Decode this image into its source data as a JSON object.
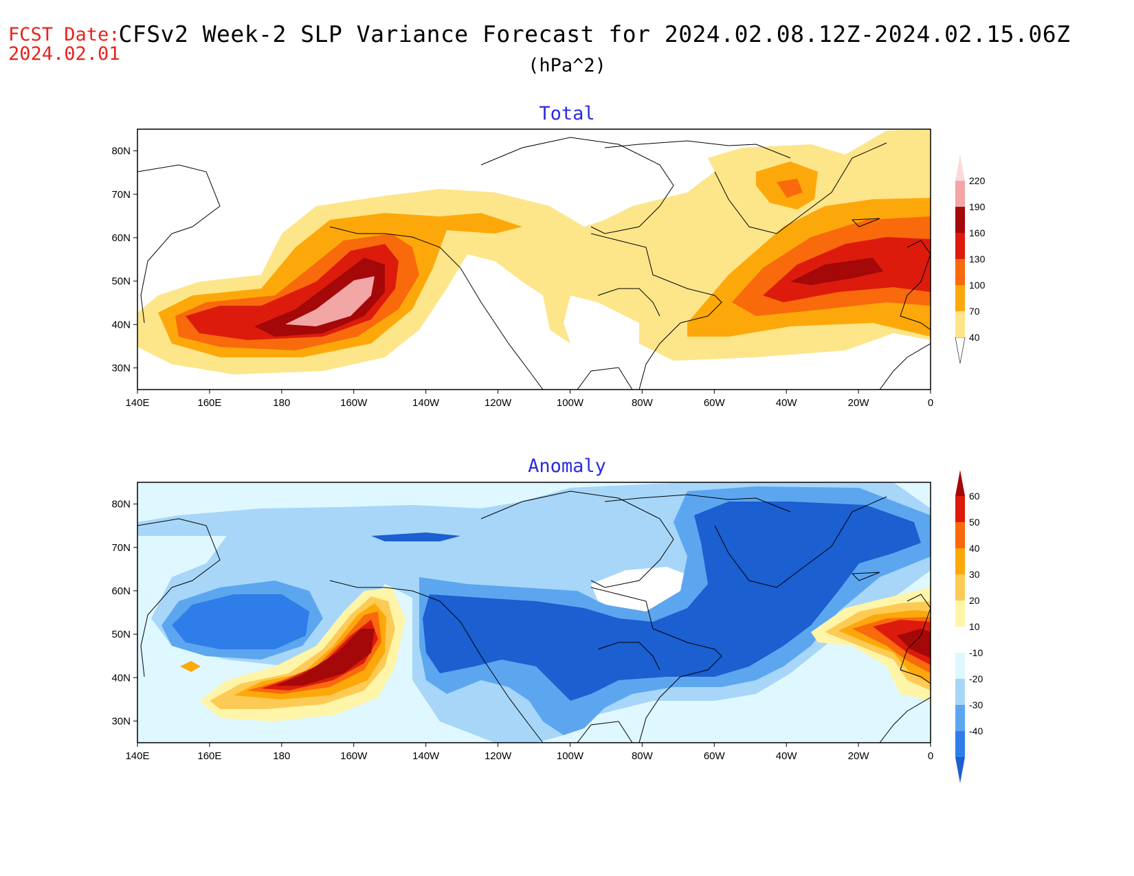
{
  "header": {
    "fcst_label": "FCST Date:",
    "fcst_date": "2024.02.01",
    "title": "CFSv2 Week-2 SLP Variance Forecast for 2024.02.08.12Z-2024.02.15.06Z",
    "units": "(hPa^2)"
  },
  "axes": {
    "lon_labels": [
      "140E",
      "160E",
      "180",
      "160W",
      "140W",
      "120W",
      "100W",
      "80W",
      "60W",
      "40W",
      "20W",
      "0"
    ],
    "lat_labels": [
      "30N",
      "40N",
      "50N",
      "60N",
      "70N",
      "80N"
    ]
  },
  "panels": [
    {
      "title": "Total",
      "colorbar": {
        "levels": [
          "40",
          "70",
          "100",
          "130",
          "160",
          "190",
          "220"
        ],
        "colors": [
          "#fde58a",
          "#fda80a",
          "#f86a0c",
          "#dc1b0d",
          "#a40808",
          "#f2a6a6",
          "#fbdada"
        ]
      }
    },
    {
      "title": "Anomaly",
      "colorbar": {
        "levels": [
          "60",
          "50",
          "40",
          "30",
          "20",
          "10",
          "-10",
          "-20",
          "-30",
          "-40"
        ],
        "colors": [
          "#a40808",
          "#dc1b0d",
          "#f86a0c",
          "#fda80a",
          "#fdcb55",
          "#fff5a8",
          "#ffffff",
          "#dff7ff",
          "#a7d6f8",
          "#5ca6f0",
          "#2f7de8",
          "#1b5fd0"
        ]
      }
    }
  ],
  "colors": {
    "fcst": "#e8221c",
    "panel_title": "#2a2ae0"
  }
}
